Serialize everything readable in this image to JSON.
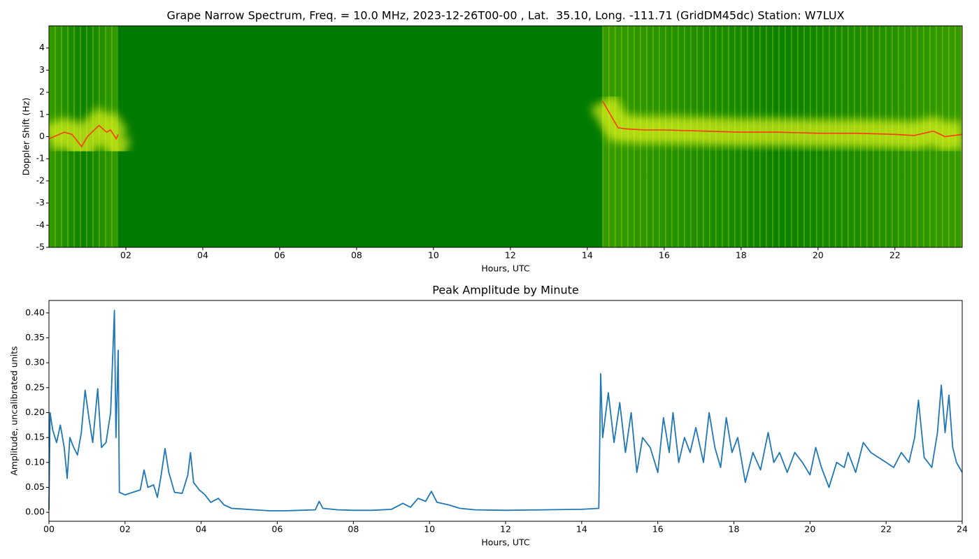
{
  "chart_data": [
    {
      "type": "spectrogram",
      "title": "Grape Narrow Spectrum, Freq. = 10.0 MHz, 2023-12-26T00-00 , Lat.  35.10, Long. -111.71 (GridDM45dc) Station: W7LUX",
      "x_label": "Hours, UTC",
      "y_label": "Doppler Shift (Hz)",
      "xlim": [
        0,
        23.75
      ],
      "ylim": [
        -5,
        5
      ],
      "xticks": [
        {
          "value": 2,
          "label": "02"
        },
        {
          "value": 4,
          "label": "04"
        },
        {
          "value": 6,
          "label": "06"
        },
        {
          "value": 8,
          "label": "08"
        },
        {
          "value": 10,
          "label": "10"
        },
        {
          "value": 12,
          "label": "12"
        },
        {
          "value": 14,
          "label": "14"
        },
        {
          "value": 16,
          "label": "16"
        },
        {
          "value": 18,
          "label": "18"
        },
        {
          "value": 20,
          "label": "20"
        },
        {
          "value": 22,
          "label": "22"
        }
      ],
      "yticks": [
        -5,
        -4,
        -3,
        -2,
        -1,
        0,
        1,
        2,
        3,
        4
      ],
      "background": "#007a00",
      "color": "#ff3a00",
      "x": [
        0,
        0.2,
        0.4,
        0.6,
        0.85,
        1.0,
        1.15,
        1.3,
        1.5,
        1.6,
        1.75,
        1.8,
        1.85,
        14.4,
        14.6,
        14.8,
        15.0,
        15.5,
        16,
        17,
        18,
        19,
        20,
        21,
        22,
        22.5,
        23,
        23.3,
        23.75
      ],
      "values": [
        -0.1,
        0.05,
        0.2,
        0.1,
        -0.45,
        0,
        0.25,
        0.5,
        0.2,
        0.3,
        -0.1,
        0.1,
        null,
        1.6,
        1.0,
        0.4,
        0.35,
        0.3,
        0.3,
        0.25,
        0.2,
        0.2,
        0.15,
        0.15,
        0.1,
        0.05,
        0.25,
        0.0,
        0.1
      ]
    },
    {
      "type": "line",
      "title": "Peak Amplitude by Minute",
      "x_label": "Hours, UTC",
      "y_label": "Amplitude, uncalibrated units",
      "xlim": [
        0,
        24
      ],
      "ylim": [
        -0.018,
        0.425
      ],
      "xticks": [
        {
          "value": 0,
          "label": "00"
        },
        {
          "value": 2,
          "label": "02"
        },
        {
          "value": 4,
          "label": "04"
        },
        {
          "value": 6,
          "label": "06"
        },
        {
          "value": 8,
          "label": "08"
        },
        {
          "value": 10,
          "label": "10"
        },
        12,
        14,
        16,
        18,
        20,
        22,
        24
      ],
      "yticks": [
        {
          "value": 0,
          "label": "0.00"
        },
        {
          "value": 0.05,
          "label": "0.05"
        },
        {
          "value": 0.1,
          "label": "0.10"
        },
        {
          "value": 0.15,
          "label": "0.15"
        },
        {
          "value": 0.2,
          "label": "0.20"
        },
        {
          "value": 0.25,
          "label": "0.25"
        },
        {
          "value": 0.3,
          "label": "0.30"
        },
        {
          "value": 0.35,
          "label": "0.35"
        },
        {
          "value": 0.4,
          "label": "0.40"
        }
      ],
      "color": "#1f77b4",
      "x": [
        0,
        0.03,
        0.1,
        0.2,
        0.3,
        0.4,
        0.48,
        0.55,
        0.65,
        0.75,
        0.85,
        0.95,
        1.05,
        1.15,
        1.28,
        1.38,
        1.5,
        1.62,
        1.72,
        1.76,
        1.82,
        1.85,
        2.0,
        2.2,
        2.4,
        2.5,
        2.6,
        2.75,
        2.85,
        2.95,
        3.05,
        3.15,
        3.3,
        3.5,
        3.65,
        3.72,
        3.8,
        3.95,
        4.1,
        4.25,
        4.45,
        4.6,
        4.8,
        5.0,
        5.4,
        5.8,
        6.2,
        6.6,
        7.0,
        7.1,
        7.2,
        7.6,
        8.0,
        8.5,
        9.0,
        9.3,
        9.5,
        9.7,
        9.9,
        10.05,
        10.2,
        10.5,
        10.8,
        11.2,
        12.0,
        13.0,
        14.0,
        14.45,
        14.5,
        14.55,
        14.7,
        14.85,
        15.0,
        15.15,
        15.3,
        15.45,
        15.6,
        15.8,
        16.0,
        16.15,
        16.3,
        16.4,
        16.55,
        16.7,
        16.85,
        17.0,
        17.2,
        17.35,
        17.5,
        17.65,
        17.8,
        17.95,
        18.1,
        18.3,
        18.5,
        18.7,
        18.9,
        19.05,
        19.2,
        19.4,
        19.6,
        19.8,
        20.0,
        20.15,
        20.3,
        20.5,
        20.7,
        20.9,
        21.0,
        21.2,
        21.4,
        21.6,
        21.8,
        22.0,
        22.2,
        22.4,
        22.6,
        22.75,
        22.85,
        23.0,
        23.2,
        23.35,
        23.45,
        23.55,
        23.65,
        23.75,
        23.85,
        24.0
      ],
      "values": [
        0.005,
        0.2,
        0.165,
        0.14,
        0.175,
        0.13,
        0.068,
        0.15,
        0.13,
        0.115,
        0.16,
        0.245,
        0.19,
        0.14,
        0.248,
        0.13,
        0.14,
        0.2,
        0.405,
        0.15,
        0.325,
        0.04,
        0.035,
        0.04,
        0.045,
        0.085,
        0.05,
        0.055,
        0.03,
        0.075,
        0.128,
        0.08,
        0.04,
        0.038,
        0.075,
        0.12,
        0.06,
        0.045,
        0.035,
        0.02,
        0.028,
        0.015,
        0.008,
        0.007,
        0.005,
        0.003,
        0.003,
        0.004,
        0.005,
        0.022,
        0.008,
        0.005,
        0.004,
        0.004,
        0.006,
        0.018,
        0.01,
        0.028,
        0.022,
        0.042,
        0.02,
        0.015,
        0.008,
        0.005,
        0.004,
        0.005,
        0.006,
        0.008,
        0.278,
        0.15,
        0.24,
        0.14,
        0.22,
        0.12,
        0.2,
        0.08,
        0.15,
        0.13,
        0.08,
        0.19,
        0.12,
        0.2,
        0.1,
        0.15,
        0.12,
        0.17,
        0.1,
        0.2,
        0.13,
        0.09,
        0.19,
        0.12,
        0.15,
        0.06,
        0.12,
        0.085,
        0.16,
        0.1,
        0.12,
        0.08,
        0.12,
        0.1,
        0.075,
        0.13,
        0.09,
        0.05,
        0.1,
        0.09,
        0.12,
        0.08,
        0.14,
        0.12,
        0.11,
        0.1,
        0.09,
        0.12,
        0.1,
        0.15,
        0.225,
        0.11,
        0.09,
        0.16,
        0.255,
        0.16,
        0.235,
        0.13,
        0.1,
        0.08
      ]
    }
  ]
}
